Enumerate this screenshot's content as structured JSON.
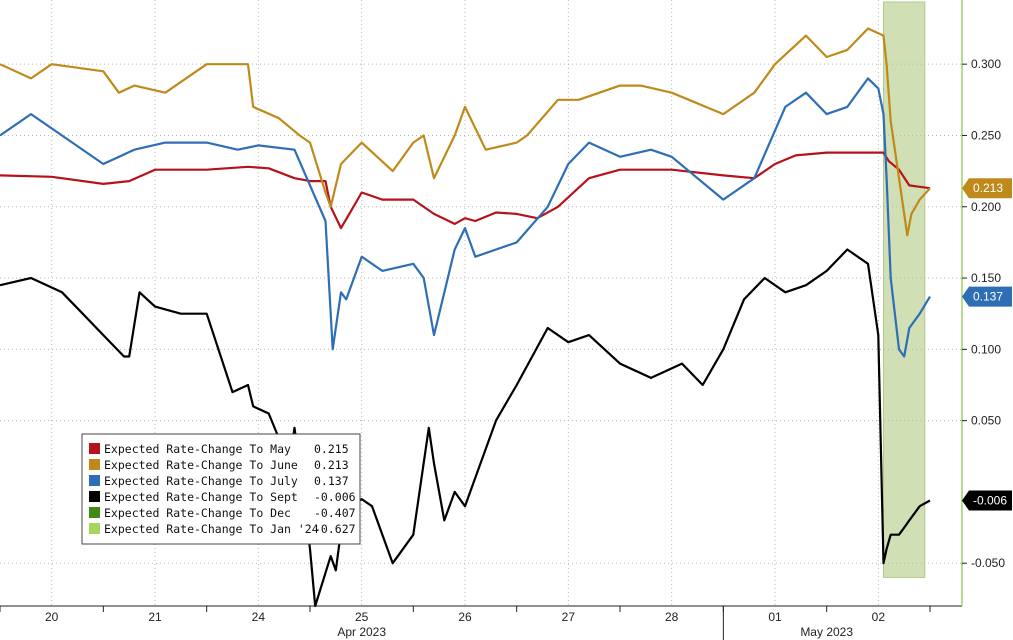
{
  "chart_data": {
    "type": "line",
    "title": "",
    "xlabel": "",
    "ylabel": "",
    "ylim": [
      -0.08,
      0.345
    ],
    "y_ticks": [
      {
        "value": 0.3,
        "label": "0.300"
      },
      {
        "value": 0.25,
        "label": "0.250"
      },
      {
        "value": 0.2,
        "label": "0.200"
      },
      {
        "value": 0.15,
        "label": "0.150"
      },
      {
        "value": 0.1,
        "label": "0.100"
      },
      {
        "value": 0.05,
        "label": "0.050"
      },
      {
        "value": -0.05,
        "label": "-0.050"
      }
    ],
    "day_labels": [
      "20",
      "21",
      "24",
      "25",
      "26",
      "27",
      "28",
      "01",
      "02"
    ],
    "month_labels": [
      "Apr 2023",
      "May 2023"
    ],
    "grid": true,
    "highlight_band": {
      "from_day": 8.55,
      "to_day": 8.95
    },
    "legend": {
      "placement": "bottom-left",
      "entries": [
        {
          "name": "Expected Rate-Change To May",
          "value": "0.215",
          "color": "#b5121b"
        },
        {
          "name": "Expected Rate-Change To June",
          "value": "0.213",
          "color": "#c08a1a"
        },
        {
          "name": "Expected Rate-Change To July",
          "value": "0.137",
          "color": "#2e6eb5"
        },
        {
          "name": "Expected Rate-Change To Sept",
          "value": "-0.006",
          "color": "#000000"
        },
        {
          "name": "Expected Rate-Change To Dec",
          "value": "-0.407",
          "color": "#3f8a16"
        },
        {
          "name": "Expected Rate-Change To Jan '24",
          "value": "-0.627",
          "color": "#a4d65e"
        }
      ]
    },
    "series": [
      {
        "name": "Expected Rate-Change To May",
        "color": "#b5121b",
        "last_label": "0.215",
        "x": [
          0.0,
          0.5,
          1.0,
          1.25,
          1.5,
          2.0,
          2.4,
          2.6,
          2.85,
          3.0,
          3.15,
          3.2,
          3.3,
          3.38,
          3.5,
          3.7,
          4.0,
          4.2,
          4.4,
          4.5,
          4.6,
          4.8,
          5.0,
          5.2,
          5.4,
          5.7,
          6.0,
          6.5,
          7.0,
          7.3,
          7.5,
          7.7,
          8.0,
          8.3,
          8.55,
          8.6,
          8.7,
          8.8,
          8.9,
          9.0
        ],
        "values": [
          0.222,
          0.221,
          0.216,
          0.218,
          0.226,
          0.226,
          0.228,
          0.227,
          0.22,
          0.218,
          0.218,
          0.2,
          0.185,
          0.195,
          0.21,
          0.205,
          0.205,
          0.195,
          0.188,
          0.192,
          0.19,
          0.196,
          0.195,
          0.192,
          0.2,
          0.22,
          0.226,
          0.226,
          0.222,
          0.22,
          0.23,
          0.236,
          0.238,
          0.238,
          0.238,
          0.232,
          0.226,
          0.215,
          0.214,
          0.213
        ]
      },
      {
        "name": "Expected Rate-Change To June",
        "color": "#c08a1a",
        "last_label": "0.213",
        "x": [
          0.0,
          0.3,
          0.5,
          1.0,
          1.15,
          1.3,
          1.6,
          2.0,
          2.4,
          2.45,
          2.7,
          2.9,
          3.0,
          3.15,
          3.2,
          3.3,
          3.5,
          3.8,
          4.0,
          4.1,
          4.2,
          4.4,
          4.5,
          4.7,
          5.0,
          5.1,
          5.4,
          5.6,
          6.0,
          6.2,
          6.5,
          7.0,
          7.3,
          7.5,
          7.8,
          8.0,
          8.2,
          8.4,
          8.55,
          8.58,
          8.62,
          8.7,
          8.78,
          8.82,
          8.9,
          9.0
        ],
        "values": [
          0.3,
          0.29,
          0.3,
          0.295,
          0.28,
          0.285,
          0.28,
          0.3,
          0.3,
          0.27,
          0.262,
          0.25,
          0.245,
          0.21,
          0.2,
          0.23,
          0.245,
          0.225,
          0.245,
          0.25,
          0.22,
          0.25,
          0.27,
          0.24,
          0.245,
          0.25,
          0.275,
          0.275,
          0.285,
          0.285,
          0.28,
          0.265,
          0.28,
          0.3,
          0.32,
          0.305,
          0.31,
          0.325,
          0.32,
          0.3,
          0.26,
          0.22,
          0.18,
          0.195,
          0.205,
          0.213
        ]
      },
      {
        "name": "Expected Rate-Change To July",
        "color": "#2e6eb5",
        "last_label": "0.137",
        "x": [
          0.0,
          0.3,
          0.6,
          1.0,
          1.3,
          1.6,
          2.0,
          2.3,
          2.5,
          2.85,
          3.0,
          3.15,
          3.22,
          3.3,
          3.35,
          3.5,
          3.7,
          4.0,
          4.1,
          4.2,
          4.4,
          4.5,
          4.6,
          4.8,
          5.0,
          5.3,
          5.5,
          5.7,
          6.0,
          6.3,
          6.5,
          7.0,
          7.3,
          7.6,
          7.8,
          8.0,
          8.2,
          8.4,
          8.5,
          8.55,
          8.58,
          8.62,
          8.7,
          8.75,
          8.8,
          8.9,
          9.0
        ],
        "values": [
          0.25,
          0.265,
          0.25,
          0.23,
          0.24,
          0.245,
          0.245,
          0.24,
          0.243,
          0.24,
          0.215,
          0.19,
          0.1,
          0.14,
          0.135,
          0.165,
          0.155,
          0.16,
          0.15,
          0.11,
          0.17,
          0.185,
          0.165,
          0.17,
          0.175,
          0.2,
          0.23,
          0.245,
          0.235,
          0.24,
          0.235,
          0.205,
          0.22,
          0.27,
          0.28,
          0.265,
          0.27,
          0.29,
          0.283,
          0.265,
          0.22,
          0.15,
          0.1,
          0.095,
          0.115,
          0.125,
          0.137
        ]
      },
      {
        "name": "Expected Rate-Change To Sept",
        "color": "#000000",
        "last_label": "-0.006",
        "x": [
          0.0,
          0.3,
          0.6,
          0.8,
          1.0,
          1.2,
          1.25,
          1.35,
          1.5,
          1.75,
          2.0,
          2.25,
          2.4,
          2.45,
          2.6,
          2.8,
          2.85,
          3.0,
          3.05,
          3.2,
          3.25,
          3.35,
          3.4,
          3.5,
          3.6,
          3.8,
          4.0,
          4.15,
          4.2,
          4.3,
          4.4,
          4.5,
          4.6,
          4.8,
          5.0,
          5.3,
          5.5,
          5.7,
          6.0,
          6.3,
          6.6,
          6.8,
          7.0,
          7.2,
          7.4,
          7.6,
          7.8,
          8.0,
          8.2,
          8.4,
          8.5,
          8.55,
          8.58,
          8.62,
          8.7,
          8.75,
          8.8,
          8.9,
          9.0
        ],
        "values": [
          0.145,
          0.15,
          0.14,
          0.125,
          0.11,
          0.095,
          0.095,
          0.14,
          0.13,
          0.125,
          0.125,
          0.07,
          0.075,
          0.06,
          0.055,
          0.02,
          0.045,
          -0.04,
          -0.08,
          -0.045,
          -0.055,
          0.0,
          -0.01,
          -0.005,
          -0.01,
          -0.05,
          -0.03,
          0.045,
          0.02,
          -0.02,
          0.0,
          -0.01,
          0.01,
          0.05,
          0.075,
          0.115,
          0.105,
          0.11,
          0.09,
          0.08,
          0.09,
          0.075,
          0.1,
          0.135,
          0.15,
          0.14,
          0.145,
          0.155,
          0.17,
          0.16,
          0.11,
          -0.05,
          -0.04,
          -0.03,
          -0.03,
          -0.025,
          -0.02,
          -0.01,
          -0.006
        ]
      }
    ]
  }
}
